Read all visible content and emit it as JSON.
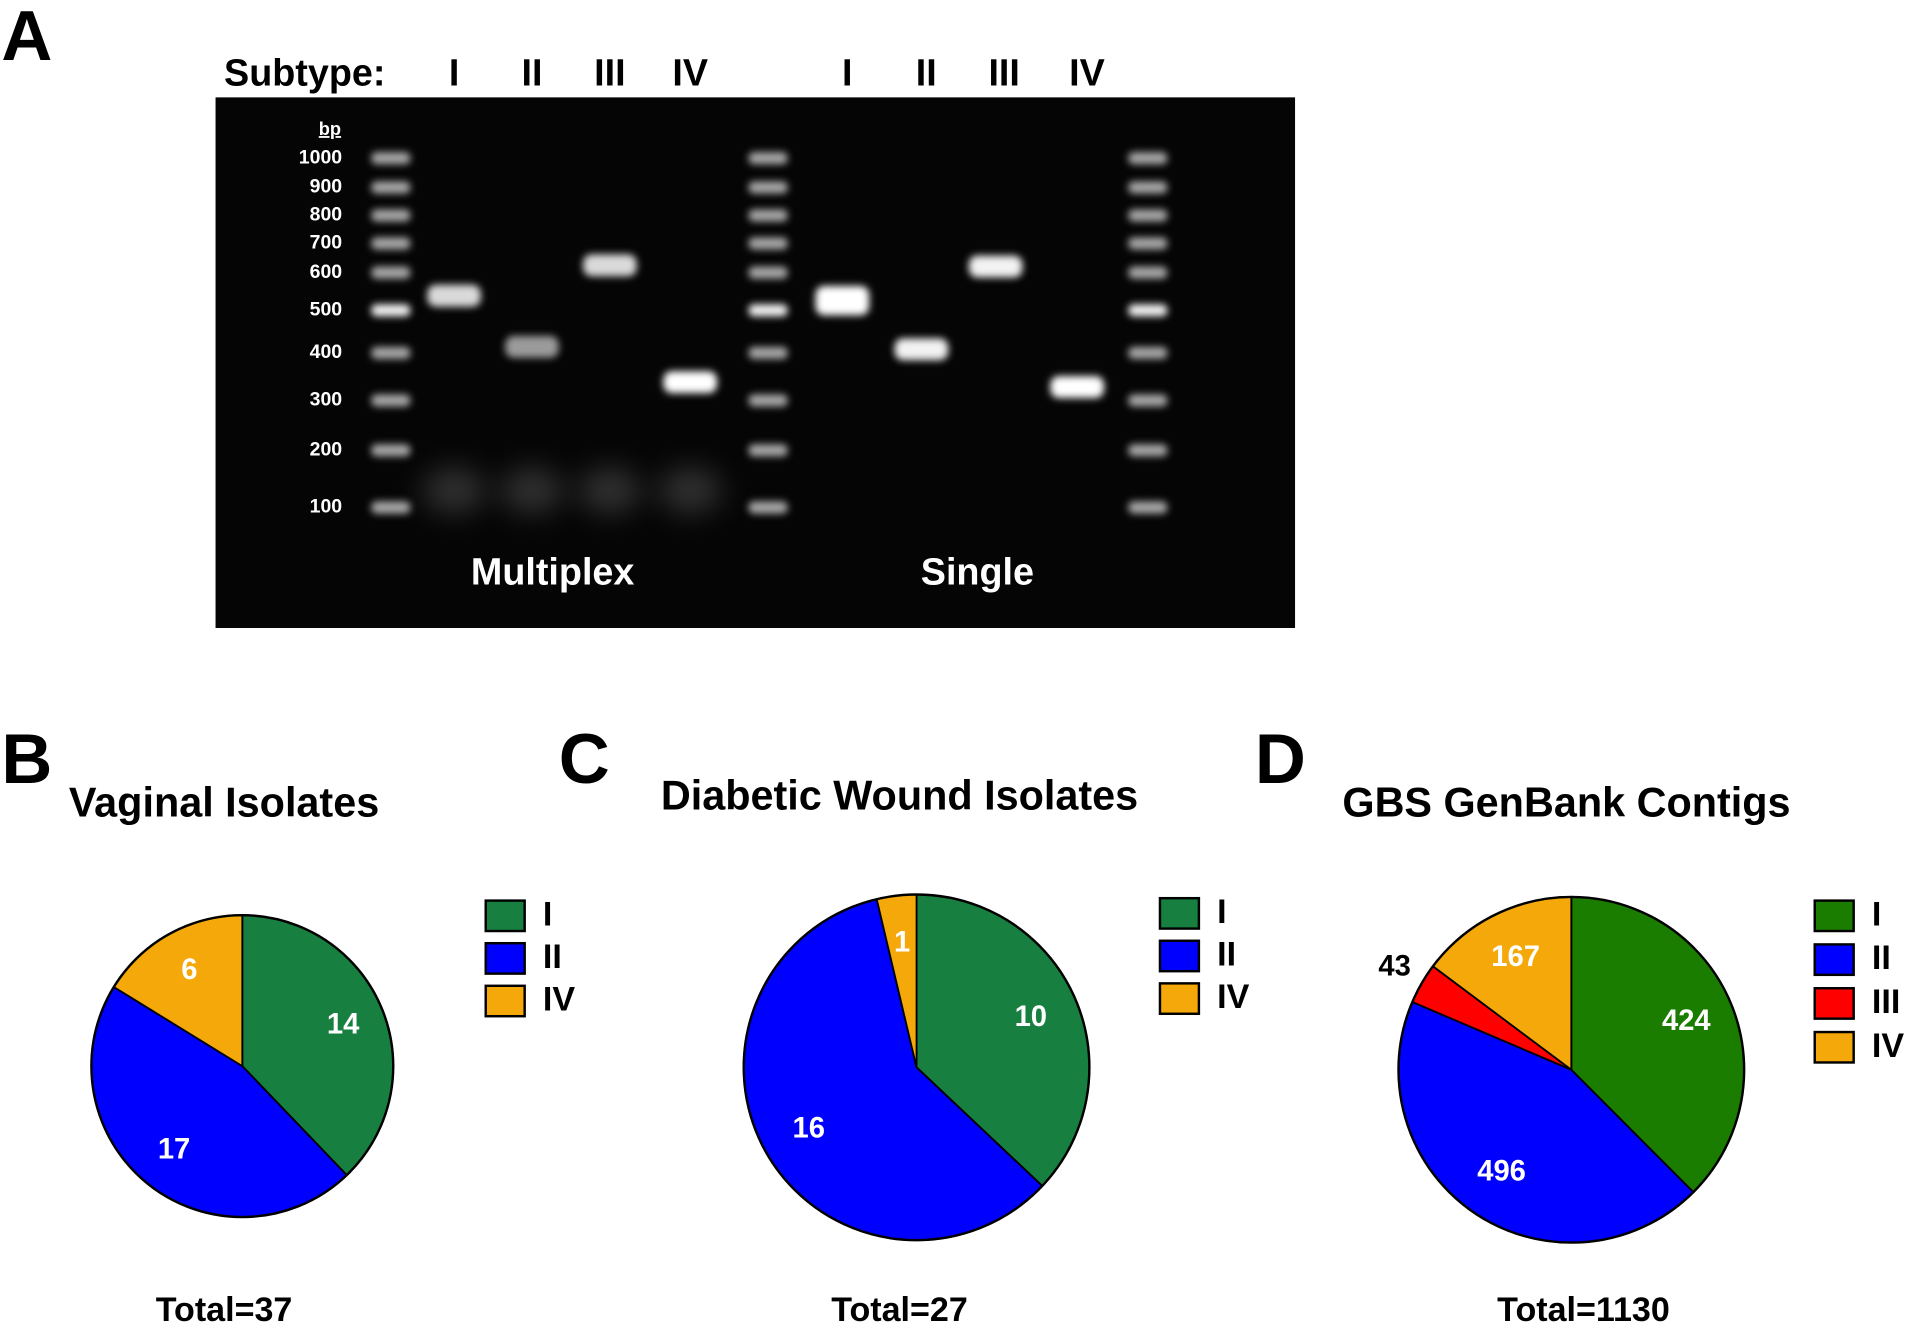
{
  "gel": {
    "panel": "A",
    "subtype_label": "Subtype:",
    "lanes": [
      "I",
      "II",
      "III",
      "IV",
      "I",
      "II",
      "III",
      "IV"
    ],
    "unit": "bp",
    "ladder": [
      1000,
      900,
      800,
      700,
      600,
      500,
      400,
      300,
      200,
      100
    ],
    "groups": [
      "Multiplex",
      "Single"
    ]
  },
  "chart_data": [
    {
      "type": "pie",
      "panel": "B",
      "title": "Vaginal Isolates",
      "categories": [
        "I",
        "II",
        "IV"
      ],
      "values": [
        14,
        17,
        6
      ],
      "colors": [
        "#178040",
        "#0000ff",
        "#f5a80a"
      ],
      "total": "Total=37"
    },
    {
      "type": "pie",
      "panel": "C",
      "title": "Diabetic Wound Isolates",
      "categories": [
        "I",
        "II",
        "IV"
      ],
      "values": [
        10,
        16,
        1
      ],
      "colors": [
        "#178040",
        "#0000ff",
        "#f5a80a"
      ],
      "total": "Total=27"
    },
    {
      "type": "pie",
      "panel": "D",
      "title": "GBS GenBank Contigs",
      "categories": [
        "I",
        "II",
        "III",
        "IV"
      ],
      "values": [
        424,
        496,
        43,
        167
      ],
      "colors": [
        "#1a7d00",
        "#0000ff",
        "#ff0000",
        "#f5a80a"
      ],
      "total": "Total=1130"
    }
  ]
}
